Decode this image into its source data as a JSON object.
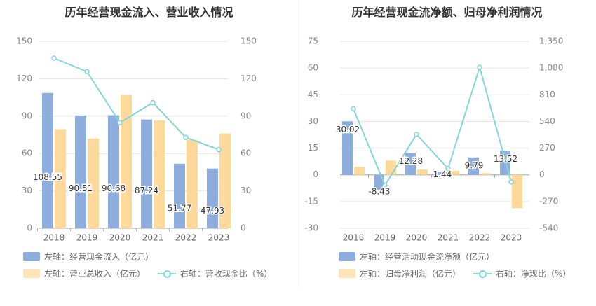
{
  "chart_data": [
    {
      "type": "bar",
      "title": "历年经营现金流入、营业收入情况",
      "categories": [
        "2018",
        "2019",
        "2020",
        "2021",
        "2022",
        "2023"
      ],
      "left_axis": {
        "ticks": [
          "0",
          "30",
          "60",
          "90",
          "120",
          "150"
        ],
        "ylim": [
          0,
          150
        ]
      },
      "right_axis": {
        "ticks": [
          "0",
          "30",
          "60",
          "90",
          "120",
          "150"
        ],
        "ylim": [
          0,
          150
        ]
      },
      "series": [
        {
          "name": "左轴：经营现金流入（亿元）",
          "type": "bar",
          "axis": "left",
          "color": "#8eaedd",
          "values": [
            108.55,
            90.51,
            90.68,
            87.24,
            51.77,
            47.93
          ],
          "labels": [
            "108.55",
            "90.51",
            "90.68",
            "87.24",
            "51.77",
            "47.93"
          ]
        },
        {
          "name": "左轴：营业总收入（亿元）",
          "type": "bar",
          "axis": "left",
          "color": "#fdd99b",
          "values": [
            79.5,
            72,
            107,
            86.5,
            71,
            76
          ]
        },
        {
          "name": "右轴：营收现金比（%）",
          "type": "line",
          "axis": "right",
          "color": "#86d5d9",
          "values": [
            136.5,
            125.7,
            84.7,
            100.8,
            72.9,
            63.1
          ]
        }
      ]
    },
    {
      "type": "bar",
      "title": "历年经营现金流净额、归母净利润情况",
      "categories": [
        "2018",
        "2019",
        "2020",
        "2021",
        "2022",
        "2023"
      ],
      "left_axis": {
        "ticks": [
          "-30",
          "-15",
          "0",
          "15",
          "30",
          "45",
          "60",
          "75"
        ],
        "ylim": [
          -30,
          75
        ]
      },
      "right_axis": {
        "ticks": [
          "-540",
          "-270",
          "0",
          "270",
          "540",
          "810",
          "1,080",
          "1,350"
        ],
        "ylim": [
          -540,
          1350
        ]
      },
      "series": [
        {
          "name": "左轴：经营活动现金流净额（亿元）",
          "type": "bar",
          "axis": "left",
          "color": "#8eaedd",
          "values": [
            30.02,
            -8.43,
            12.28,
            1.44,
            9.79,
            13.52
          ],
          "labels": [
            "30.02",
            "-8.43",
            "12.28",
            "1.44",
            "9.79",
            "13.52"
          ]
        },
        {
          "name": "左轴：归母净利润（亿元）",
          "type": "bar",
          "axis": "left",
          "color": "#fdd99b",
          "values": [
            4.5,
            8.0,
            3.0,
            2.3,
            0.9,
            -18.7
          ]
        },
        {
          "name": "右轴：净现比（%）",
          "type": "line",
          "axis": "right",
          "color": "#86d5d9",
          "values": [
            667,
            -105,
            409,
            63,
            1088,
            -72
          ]
        }
      ]
    }
  ]
}
